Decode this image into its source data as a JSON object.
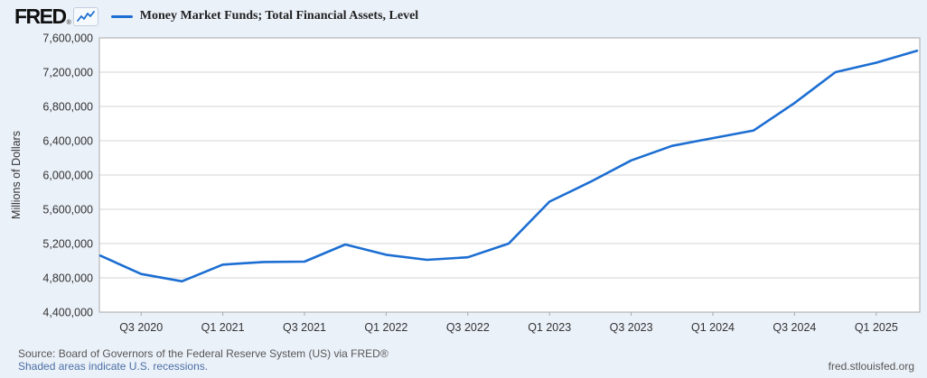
{
  "header": {
    "logo_text": "FRED",
    "logo_reg_mark": "®",
    "legend": {
      "marker_color": "#1c6ed2",
      "label": "Money Market Funds; Total Financial Assets, Level"
    }
  },
  "chart_data": {
    "type": "line",
    "title": "Money Market Funds; Total Financial Assets, Level",
    "xlabel": "",
    "ylabel": "Millions of Dollars",
    "x": [
      "2020 Q2",
      "2020 Q3",
      "2020 Q4",
      "2021 Q1",
      "2021 Q2",
      "2021 Q3",
      "2021 Q4",
      "2022 Q1",
      "2022 Q2",
      "2022 Q3",
      "2022 Q4",
      "2023 Q1",
      "2023 Q2",
      "2023 Q3",
      "2023 Q4",
      "2024 Q1",
      "2024 Q2",
      "2024 Q3",
      "2024 Q4",
      "2025 Q1",
      "2025 Q2"
    ],
    "values": [
      5060000,
      4845000,
      4760000,
      4955000,
      4985000,
      4990000,
      5190000,
      5070000,
      5010000,
      5040000,
      5200000,
      5690000,
      5920000,
      6170000,
      6340000,
      6430000,
      6520000,
      6840000,
      7200000,
      7310000,
      7450000
    ],
    "ylim": [
      4400000,
      7600000
    ],
    "ytick_step": 400000,
    "ytick_labels": [
      "4,400,000",
      "4,800,000",
      "5,200,000",
      "5,600,000",
      "6,000,000",
      "6,400,000",
      "6,800,000",
      "7,200,000",
      "7,600,000"
    ],
    "xtick_labels": [
      "Q3 2020",
      "Q1 2021",
      "Q3 2021",
      "Q1 2022",
      "Q3 2022",
      "Q1 2023",
      "Q3 2023",
      "Q1 2024",
      "Q3 2024",
      "Q1 2025"
    ],
    "xtick_indices": [
      1,
      3,
      5,
      7,
      9,
      11,
      13,
      15,
      17,
      19
    ],
    "grid": true,
    "legend_position": "top-left",
    "line_color": "#1c6ed2"
  },
  "footer": {
    "source_line": "Source: Board of Governors of the Federal Reserve System (US) via FRED®",
    "recession_note": "Shaded areas indicate U.S. recessions.",
    "site_link": "fred.stlouisfed.org"
  },
  "colors": {
    "page_bg": "#ebf1f9",
    "plot_bg": "#ffffff",
    "grid": "#d6d6d6",
    "frame": "#a9a9a9",
    "axis_text": "#333333",
    "line": "#1c6ed2",
    "footer_text": "#565656",
    "link": "#4a6fa5"
  }
}
